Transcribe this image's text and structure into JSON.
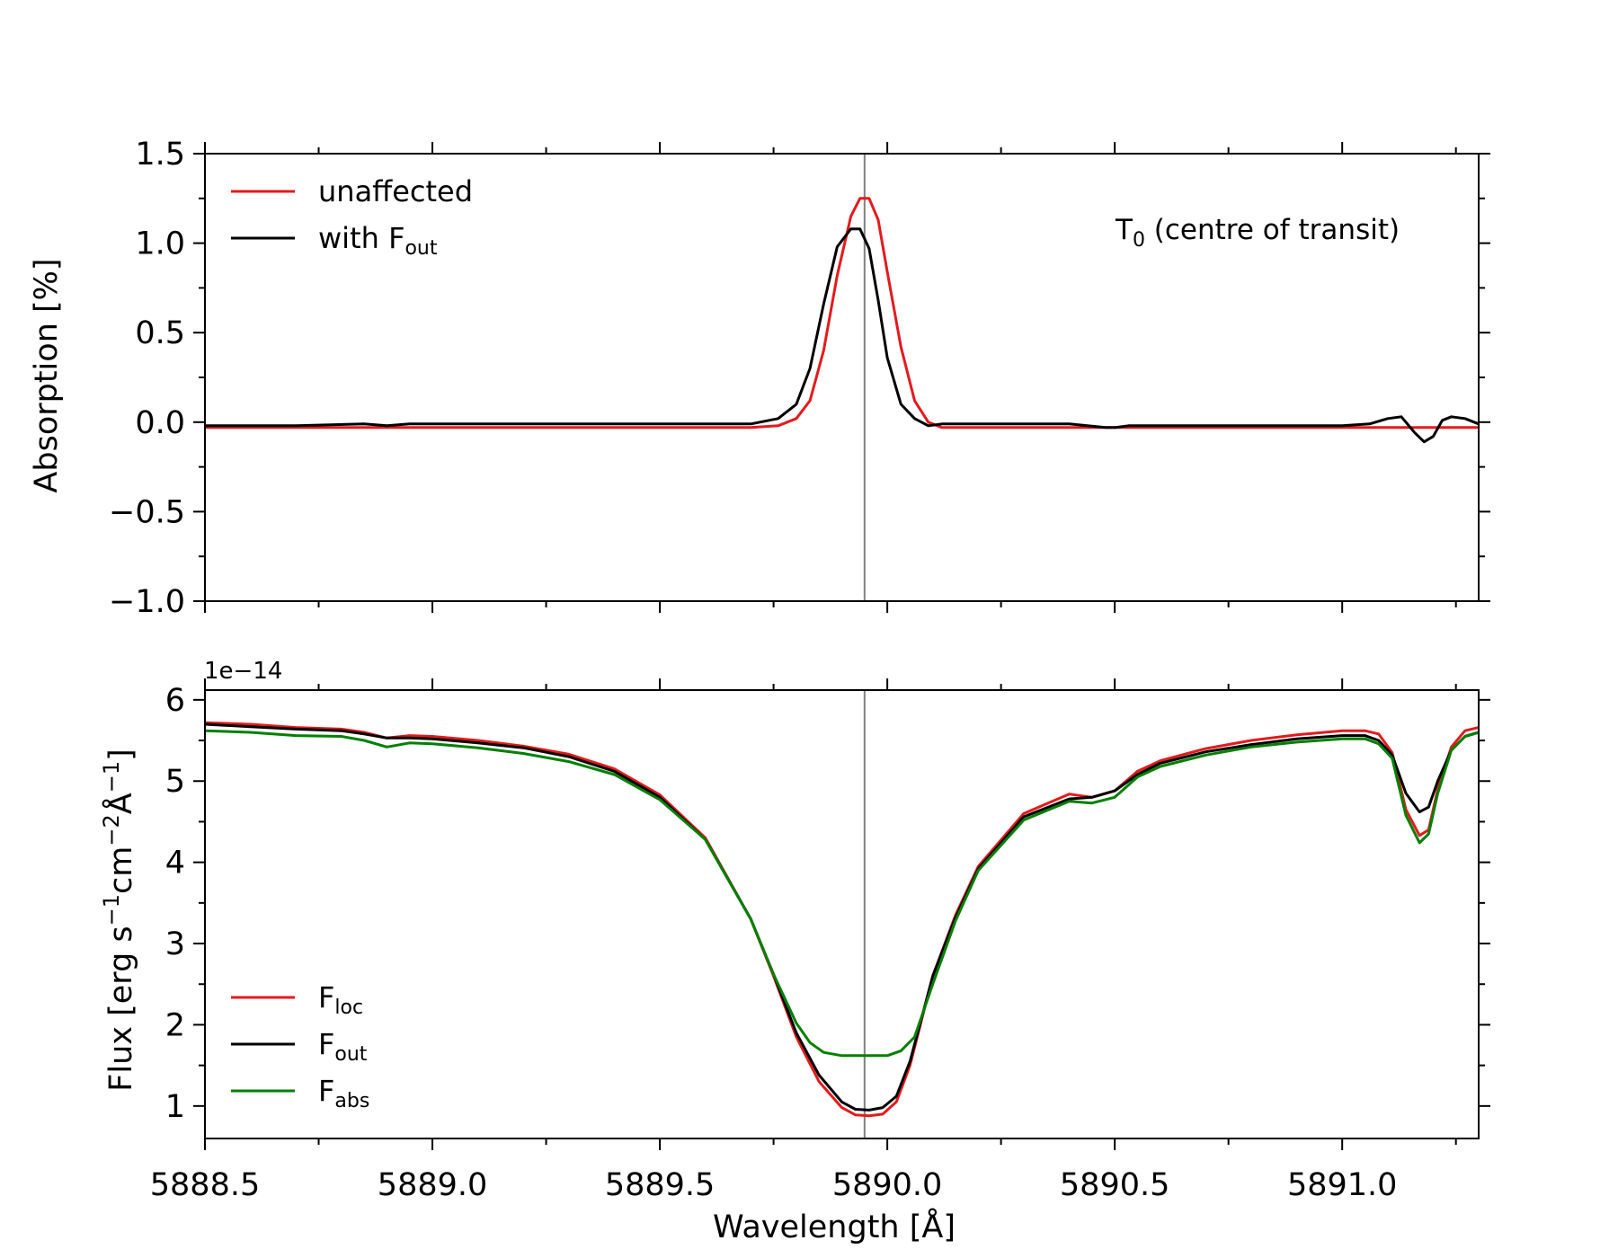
{
  "chart_data": [
    {
      "type": "line",
      "ylabel": "Absorption [%]",
      "xlim": [
        5888.5,
        5891.3
      ],
      "ylim": [
        -1.0,
        1.5
      ],
      "yticks": [
        -1.0,
        -0.5,
        0.0,
        0.5,
        1.0,
        1.5
      ],
      "ytick_labels": [
        "−1.0",
        "−0.5",
        "0.0",
        "0.5",
        "1.0",
        "1.5"
      ],
      "grid": false,
      "vline_x": 5889.95,
      "annotation": {
        "main": "T",
        "sub": "0",
        "rest": " (centre of transit)"
      },
      "legend_position": "top-left",
      "colors": {
        "unaffected": "#e41a1c",
        "with_fout": "#000000",
        "vline": "#808080"
      },
      "series": [
        {
          "name": "unaffected",
          "label_main": "unaffected",
          "label_sub": "",
          "x": [
            5888.5,
            5889.7,
            5889.76,
            5889.8,
            5889.83,
            5889.86,
            5889.89,
            5889.92,
            5889.94,
            5889.96,
            5889.98,
            5890.0,
            5890.03,
            5890.06,
            5890.09,
            5890.12,
            5890.2,
            5891.3
          ],
          "y": [
            -0.03,
            -0.03,
            -0.02,
            0.02,
            0.12,
            0.4,
            0.82,
            1.15,
            1.25,
            1.25,
            1.13,
            0.84,
            0.42,
            0.12,
            0.0,
            -0.03,
            -0.03,
            -0.03
          ]
        },
        {
          "name": "with F_out",
          "label_main": "with F",
          "label_sub": "out",
          "x": [
            5888.5,
            5888.7,
            5888.85,
            5888.9,
            5888.95,
            5889.0,
            5889.5,
            5889.7,
            5889.76,
            5889.8,
            5889.83,
            5889.86,
            5889.89,
            5889.92,
            5889.94,
            5889.96,
            5889.98,
            5890.0,
            5890.03,
            5890.06,
            5890.09,
            5890.12,
            5890.2,
            5890.4,
            5890.48,
            5890.5,
            5890.53,
            5890.6,
            5891.0,
            5891.06,
            5891.1,
            5891.13,
            5891.16,
            5891.18,
            5891.2,
            5891.22,
            5891.24,
            5891.27,
            5891.3
          ],
          "y": [
            -0.02,
            -0.02,
            -0.01,
            -0.02,
            -0.01,
            -0.01,
            -0.01,
            -0.01,
            0.02,
            0.1,
            0.3,
            0.66,
            0.98,
            1.08,
            1.08,
            0.97,
            0.68,
            0.36,
            0.1,
            0.02,
            -0.02,
            -0.01,
            -0.01,
            -0.01,
            -0.03,
            -0.03,
            -0.02,
            -0.02,
            -0.02,
            -0.01,
            0.02,
            0.03,
            -0.06,
            -0.11,
            -0.08,
            0.01,
            0.03,
            0.02,
            -0.01
          ]
        }
      ]
    },
    {
      "type": "line",
      "ylabel_main": "Flux [erg s",
      "ylabel_full": "Flux [erg s⁻¹cm⁻²Å⁻¹]",
      "xlabel": "Wavelength [Å]",
      "xlim": [
        5888.5,
        5891.3
      ],
      "ylim": [
        0.6,
        6.12
      ],
      "yticks": [
        1,
        2,
        3,
        4,
        5,
        6
      ],
      "ytick_labels": [
        "1",
        "2",
        "3",
        "4",
        "5",
        "6"
      ],
      "xticks": [
        5888.5,
        5889.0,
        5889.5,
        5890.0,
        5890.5,
        5891.0
      ],
      "xtick_labels": [
        "5888.5",
        "5889.0",
        "5889.5",
        "5890.0",
        "5890.5",
        "5891.0"
      ],
      "y_offset_label": "1e−14",
      "grid": false,
      "vline_x": 5889.95,
      "legend_position": "bottom-left",
      "colors": {
        "F_loc": "#e41a1c",
        "F_out": "#000000",
        "F_abs": "#008000",
        "vline": "#808080"
      },
      "series": [
        {
          "name": "F_loc",
          "label_main": "F",
          "label_sub": "loc",
          "x": [
            5888.5,
            5888.6,
            5888.7,
            5888.8,
            5888.85,
            5888.9,
            5888.95,
            5889.0,
            5889.1,
            5889.2,
            5889.3,
            5889.4,
            5889.5,
            5889.6,
            5889.7,
            5889.75,
            5889.8,
            5889.85,
            5889.9,
            5889.93,
            5889.96,
            5889.99,
            5890.02,
            5890.05,
            5890.1,
            5890.15,
            5890.2,
            5890.3,
            5890.4,
            5890.45,
            5890.5,
            5890.55,
            5890.6,
            5890.7,
            5890.8,
            5890.9,
            5891.0,
            5891.05,
            5891.08,
            5891.11,
            5891.14,
            5891.17,
            5891.19,
            5891.21,
            5891.24,
            5891.27,
            5891.3
          ],
          "y": [
            5.72,
            5.7,
            5.66,
            5.64,
            5.6,
            5.53,
            5.56,
            5.55,
            5.5,
            5.43,
            5.33,
            5.15,
            4.83,
            4.3,
            3.3,
            2.6,
            1.85,
            1.3,
            0.98,
            0.89,
            0.88,
            0.9,
            1.05,
            1.5,
            2.6,
            3.35,
            3.95,
            4.6,
            4.84,
            4.8,
            4.88,
            5.12,
            5.25,
            5.4,
            5.5,
            5.57,
            5.62,
            5.62,
            5.58,
            5.35,
            4.65,
            4.33,
            4.4,
            4.9,
            5.42,
            5.62,
            5.66
          ]
        },
        {
          "name": "F_out",
          "label_main": "F",
          "label_sub": "out",
          "x": [
            5888.5,
            5888.6,
            5888.7,
            5888.8,
            5888.85,
            5888.9,
            5888.95,
            5889.0,
            5889.1,
            5889.2,
            5889.3,
            5889.4,
            5889.5,
            5889.6,
            5889.7,
            5889.75,
            5889.8,
            5889.85,
            5889.9,
            5889.93,
            5889.96,
            5889.99,
            5890.02,
            5890.05,
            5890.1,
            5890.15,
            5890.2,
            5890.3,
            5890.4,
            5890.45,
            5890.5,
            5890.55,
            5890.6,
            5890.7,
            5890.8,
            5890.9,
            5891.0,
            5891.05,
            5891.08,
            5891.11,
            5891.14,
            5891.17,
            5891.19,
            5891.21,
            5891.24,
            5891.27,
            5891.3
          ],
          "y": [
            5.7,
            5.67,
            5.64,
            5.62,
            5.58,
            5.53,
            5.53,
            5.52,
            5.47,
            5.41,
            5.3,
            5.12,
            4.8,
            4.28,
            3.3,
            2.62,
            1.9,
            1.38,
            1.05,
            0.96,
            0.95,
            0.98,
            1.12,
            1.55,
            2.6,
            3.32,
            3.92,
            4.56,
            4.78,
            4.8,
            4.88,
            5.08,
            5.22,
            5.36,
            5.45,
            5.52,
            5.56,
            5.56,
            5.5,
            5.32,
            4.85,
            4.62,
            4.68,
            5.0,
            5.38,
            5.55,
            5.6
          ]
        },
        {
          "name": "F_abs",
          "label_main": "F",
          "label_sub": "abs",
          "x": [
            5888.5,
            5888.6,
            5888.7,
            5888.8,
            5888.85,
            5888.9,
            5888.95,
            5889.0,
            5889.1,
            5889.2,
            5889.3,
            5889.4,
            5889.5,
            5889.6,
            5889.7,
            5889.75,
            5889.8,
            5889.83,
            5889.86,
            5889.9,
            5889.95,
            5890.0,
            5890.03,
            5890.06,
            5890.1,
            5890.15,
            5890.2,
            5890.3,
            5890.4,
            5890.45,
            5890.5,
            5890.55,
            5890.6,
            5890.7,
            5890.8,
            5890.9,
            5891.0,
            5891.05,
            5891.08,
            5891.11,
            5891.14,
            5891.17,
            5891.19,
            5891.21,
            5891.24,
            5891.27,
            5891.3
          ],
          "y": [
            5.62,
            5.6,
            5.56,
            5.55,
            5.5,
            5.42,
            5.47,
            5.46,
            5.41,
            5.34,
            5.24,
            5.08,
            4.77,
            4.28,
            3.3,
            2.62,
            2.02,
            1.78,
            1.66,
            1.62,
            1.62,
            1.62,
            1.68,
            1.85,
            2.5,
            3.28,
            3.9,
            4.52,
            4.75,
            4.73,
            4.8,
            5.05,
            5.18,
            5.32,
            5.42,
            5.48,
            5.52,
            5.52,
            5.46,
            5.28,
            4.58,
            4.24,
            4.35,
            4.85,
            5.38,
            5.55,
            5.6
          ]
        }
      ]
    }
  ]
}
